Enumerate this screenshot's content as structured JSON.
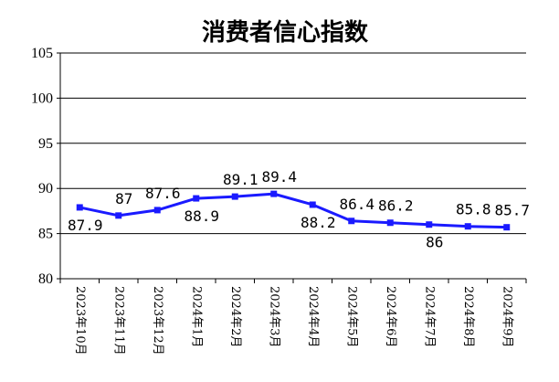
{
  "chart_data": {
    "type": "line",
    "title": "消费者信心指数",
    "categories": [
      "2023年10月",
      "2023年11月",
      "2023年12月",
      "2024年1月",
      "2024年2月",
      "2024年3月",
      "2024年4月",
      "2024年5月",
      "2024年6月",
      "2024年7月",
      "2024年8月",
      "2024年9月"
    ],
    "series": [
      {
        "values": [
          87.9,
          87,
          87.6,
          88.9,
          89.1,
          89.4,
          88.2,
          86.4,
          86.2,
          86,
          85.8,
          85.7
        ]
      }
    ],
    "data_labels": [
      "87.9",
      "87",
      "87.6",
      "88.9",
      "89.1",
      "89.4",
      "88.2",
      "86.4",
      "86.2",
      "86",
      "85.8",
      "85.7"
    ],
    "label_positions": [
      "below",
      "above",
      "above",
      "below",
      "above",
      "above",
      "below",
      "above",
      "above",
      "below",
      "above",
      "above"
    ],
    "ylim": [
      80,
      105
    ],
    "yticks": [
      80,
      85,
      90,
      95,
      100,
      105
    ],
    "ytick_labels": [
      "80",
      "85",
      "90",
      "95",
      "100",
      "105"
    ],
    "grid": "horizontal",
    "xlabel": "",
    "ylabel": "",
    "line_color": "#1a1aff"
  }
}
